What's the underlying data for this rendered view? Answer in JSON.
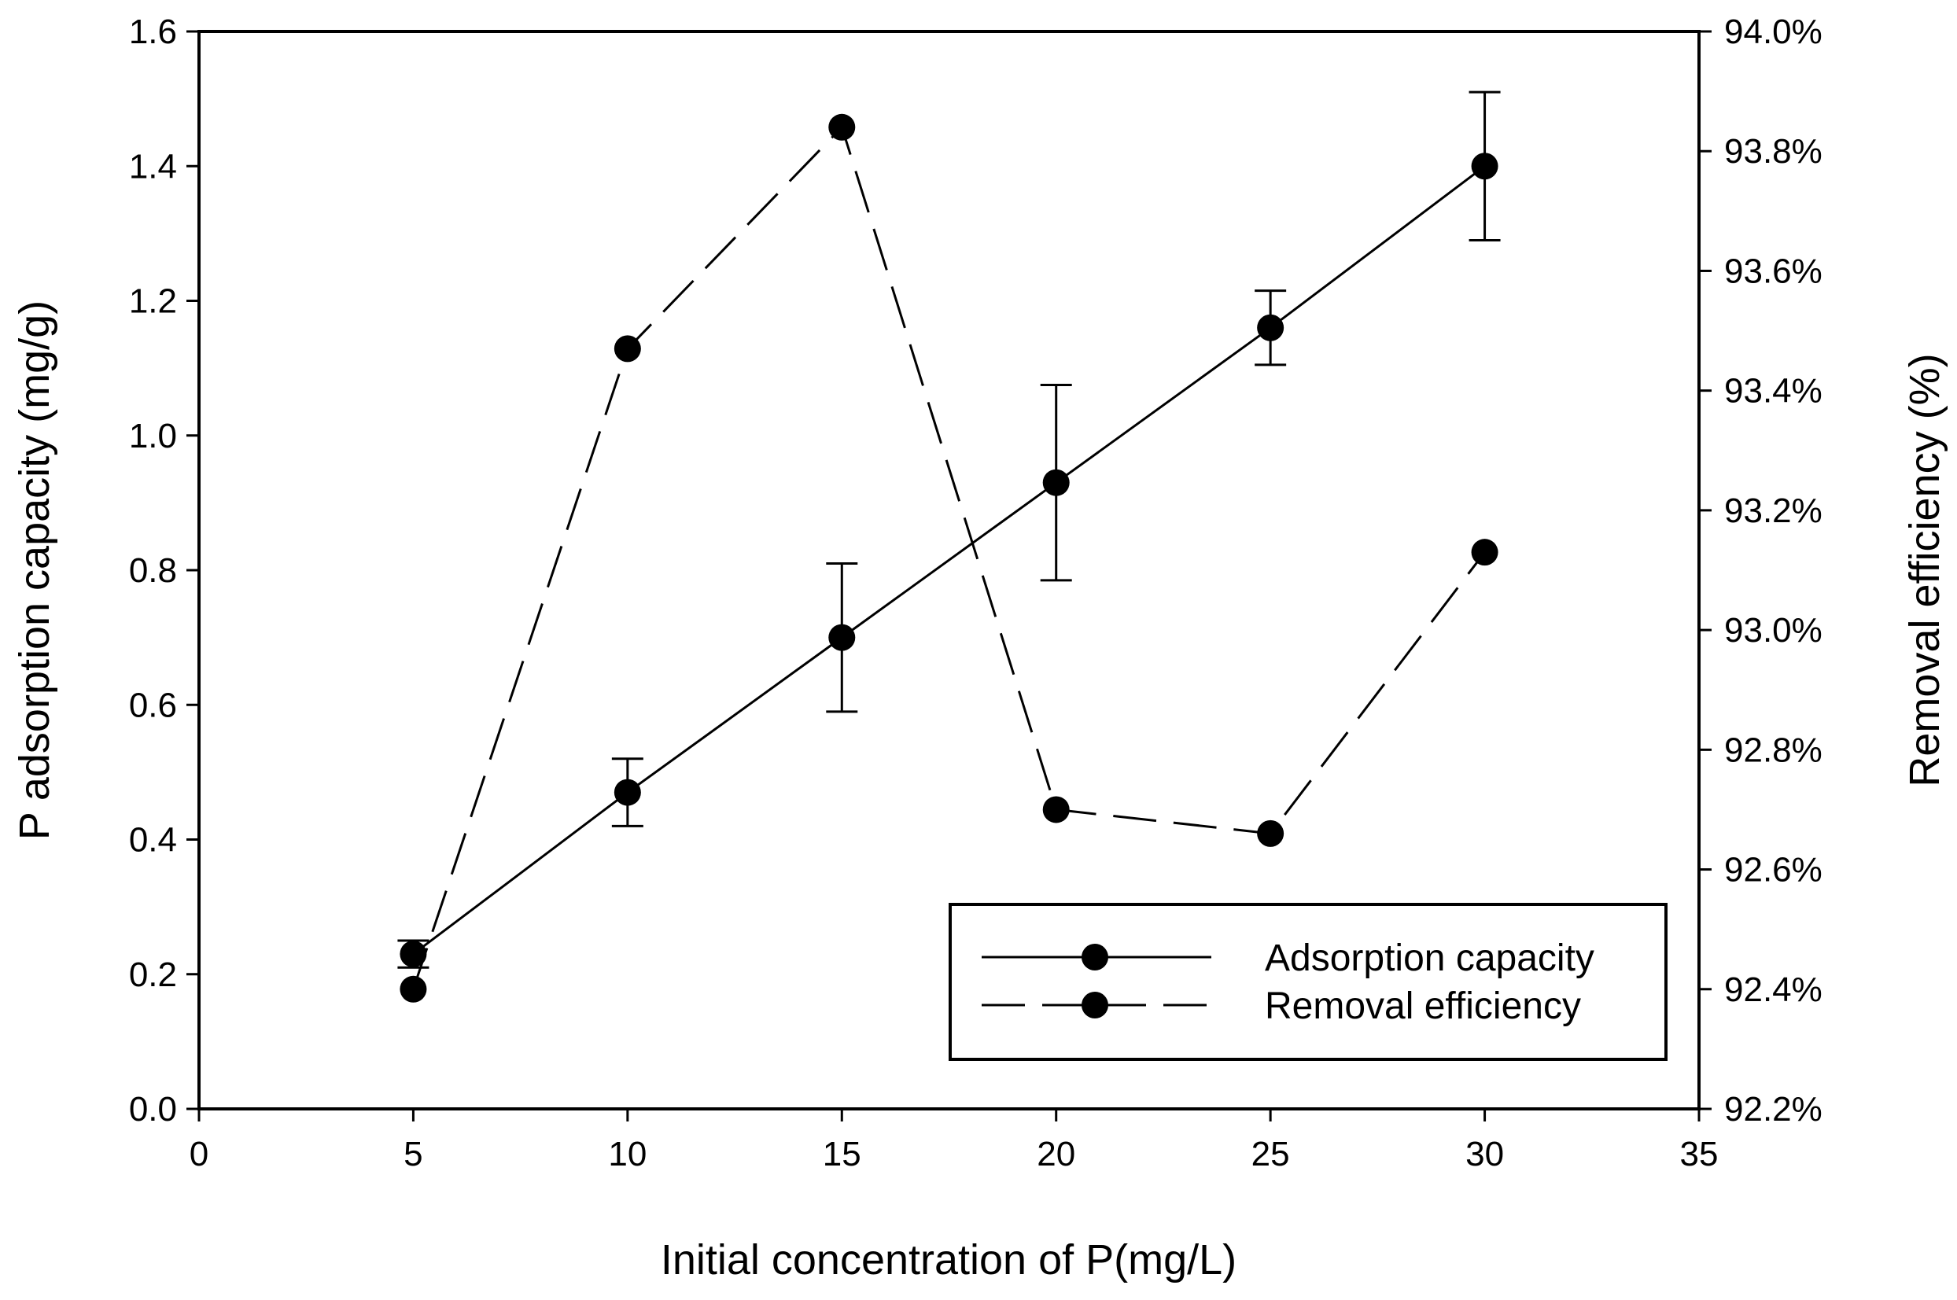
{
  "chart_data": {
    "type": "line",
    "xlabel": "Initial concentration of P(mg/L)",
    "ylabel": "P adsorption capacity (mg/g)",
    "y2label": "Removal efficiency (%)",
    "xlim": [
      0,
      35
    ],
    "ylim": [
      0,
      1.6
    ],
    "y2lim": [
      92.2,
      94.0
    ],
    "xticks": [
      0,
      5,
      10,
      15,
      20,
      25,
      30,
      35
    ],
    "yticks": [
      0.0,
      0.2,
      0.4,
      0.6,
      0.8,
      1.0,
      1.2,
      1.4,
      1.6
    ],
    "y2ticks": [
      92.2,
      92.4,
      92.6,
      92.8,
      93.0,
      93.2,
      93.4,
      93.6,
      93.8,
      94.0
    ],
    "xtick_labels": [
      "0",
      "5",
      "10",
      "15",
      "20",
      "25",
      "30",
      "35"
    ],
    "ytick_labels": [
      "0.0",
      "0.2",
      "0.4",
      "0.6",
      "0.8",
      "1.0",
      "1.2",
      "1.4",
      "1.6"
    ],
    "y2tick_labels": [
      "92.2%",
      "92.4%",
      "92.6%",
      "92.8%",
      "93.0%",
      "93.2%",
      "93.4%",
      "93.6%",
      "93.8%",
      "94.0%"
    ],
    "legend_position": "lower-right",
    "series": [
      {
        "name": "Adsorption capacity",
        "axis": "left",
        "line_style": "solid",
        "x": [
          5,
          10,
          15,
          20,
          25,
          30
        ],
        "values": [
          0.23,
          0.47,
          0.7,
          0.93,
          1.16,
          1.4
        ],
        "error": [
          0.02,
          0.05,
          0.11,
          0.145,
          0.055,
          0.11
        ]
      },
      {
        "name": "Removal efficiency",
        "axis": "right",
        "line_style": "dashed",
        "x": [
          5,
          10,
          15,
          20,
          25,
          30
        ],
        "values": [
          92.4,
          93.47,
          93.84,
          92.7,
          92.66,
          93.13
        ]
      }
    ]
  }
}
